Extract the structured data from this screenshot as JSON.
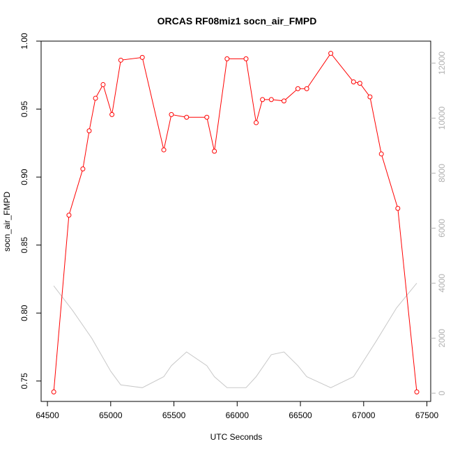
{
  "chart_data": {
    "type": "line",
    "title": "ORCAS RF08miz1 socn_air_FMPD",
    "xlabel": "UTC Seconds",
    "ylabel": "socn_air_FMPD",
    "xlim": [
      64450,
      67530
    ],
    "ylim": [
      0.735,
      1.0
    ],
    "y2lim": [
      -300,
      12800
    ],
    "x_ticks": [
      64500,
      65000,
      65500,
      66000,
      66500,
      67000,
      67500
    ],
    "y_ticks": [
      0.75,
      0.8,
      0.85,
      0.9,
      0.95,
      1.0
    ],
    "y2_ticks": [
      0,
      2000,
      4000,
      6000,
      8000,
      10000,
      12000
    ],
    "x_tick_labels": [
      "64500",
      "65000",
      "65500",
      "66000",
      "66500",
      "67000",
      "67500"
    ],
    "y_tick_labels": [
      "0.75",
      "0.80",
      "0.85",
      "0.90",
      "0.95",
      "1.00"
    ],
    "y2_tick_labels": [
      "0",
      "2000",
      "4000",
      "6000",
      "8000",
      "10000",
      "12000"
    ],
    "grid": false,
    "series": [
      {
        "axis": "left",
        "color": "#ff0000",
        "marker": "open-circle",
        "x": [
          64550,
          64670,
          64780,
          64830,
          64880,
          64940,
          65010,
          65080,
          65250,
          65420,
          65480,
          65600,
          65760,
          65820,
          65920,
          66070,
          66150,
          66200,
          66270,
          66370,
          66480,
          66550,
          66740,
          66920,
          66970,
          67050,
          67140,
          67270,
          67420
        ],
        "y": [
          0.742,
          0.872,
          0.906,
          0.934,
          0.958,
          0.968,
          0.946,
          0.986,
          0.988,
          0.92,
          0.946,
          0.944,
          0.944,
          0.919,
          0.987,
          0.987,
          0.94,
          0.957,
          0.957,
          0.956,
          0.965,
          0.965,
          0.991,
          0.97,
          0.969,
          0.959,
          0.917,
          0.877,
          0.742
        ]
      },
      {
        "axis": "right",
        "color": "#c8c8c8",
        "marker": "none",
        "x": [
          64550,
          64700,
          64850,
          65000,
          65080,
          65250,
          65420,
          65480,
          65600,
          65760,
          65820,
          65920,
          66070,
          66150,
          66270,
          66370,
          66480,
          66550,
          66740,
          66920,
          67100,
          67260,
          67420
        ],
        "y": [
          3900,
          3000,
          2000,
          800,
          300,
          200,
          600,
          1000,
          1500,
          1000,
          600,
          200,
          200,
          600,
          1400,
          1500,
          1000,
          600,
          200,
          600,
          1900,
          3100,
          4000
        ]
      }
    ]
  }
}
